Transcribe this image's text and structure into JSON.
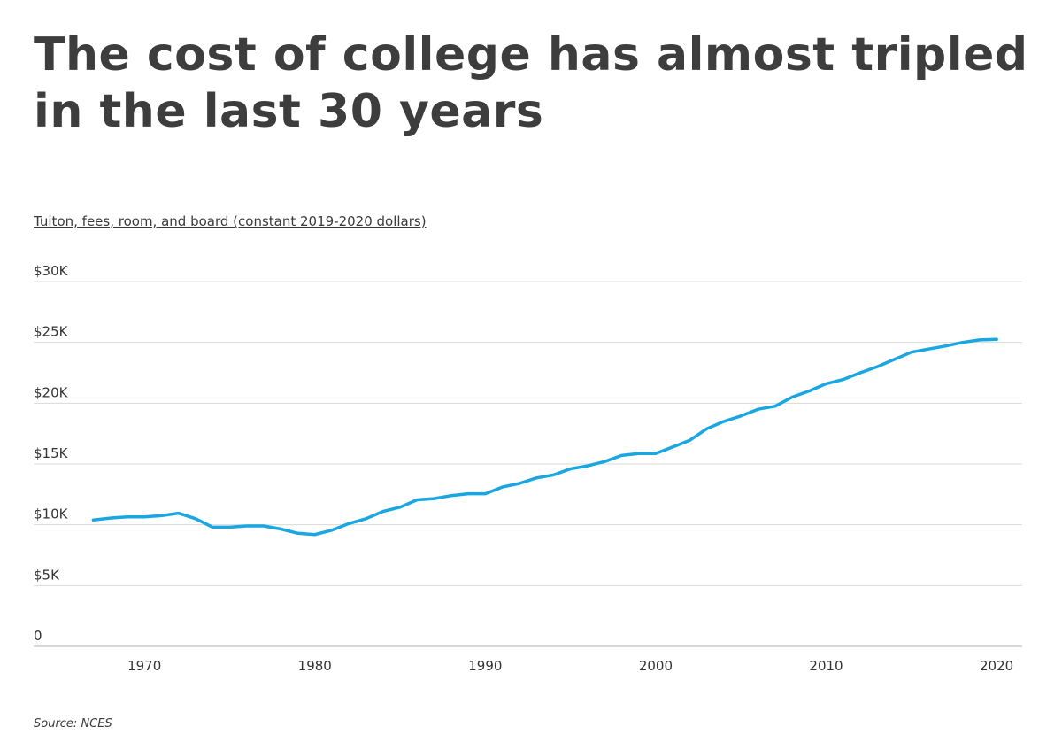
{
  "title": "The cost of college has almost tripled in the last 30 years",
  "source": "Source:  NCES",
  "colors": {
    "line": "#1aa7e1",
    "grid": "#d9d9d9",
    "axis": "#cccccc"
  },
  "chart_data": {
    "type": "line",
    "title": "The cost of college has almost tripled in the last 30 years",
    "ylabel": "Tuiton, fees, room, and board (constant 2019-2020 dollars)",
    "xlabel": "",
    "ylim": [
      0,
      30000
    ],
    "xlim": [
      1963.5,
      2021.5
    ],
    "y_ticks": [
      {
        "value": 0,
        "label": "0"
      },
      {
        "value": 5000,
        "label": "$5K"
      },
      {
        "value": 10000,
        "label": "$10K"
      },
      {
        "value": 15000,
        "label": "$15K"
      },
      {
        "value": 20000,
        "label": "$20K"
      },
      {
        "value": 25000,
        "label": "$25K"
      },
      {
        "value": 30000,
        "label": "$30K"
      }
    ],
    "x_ticks": [
      {
        "value": 1970,
        "label": "1970"
      },
      {
        "value": 1980,
        "label": "1980"
      },
      {
        "value": 1990,
        "label": "1990"
      },
      {
        "value": 2000,
        "label": "2000"
      },
      {
        "value": 2010,
        "label": "2010"
      },
      {
        "value": 2020,
        "label": "2020"
      }
    ],
    "grid": true,
    "series": [
      {
        "x": [
          1967,
          1968,
          1969,
          1970,
          1971,
          1972,
          1973,
          1974,
          1975,
          1976,
          1977,
          1978,
          1979,
          1980,
          1981,
          1982,
          1983,
          1984,
          1985,
          1986,
          1987,
          1988,
          1989,
          1990,
          1991,
          1992,
          1993,
          1994,
          1995,
          1996,
          1997,
          1998,
          1999,
          2000,
          2001,
          2002,
          2003,
          2004,
          2005,
          2006,
          2007,
          2008,
          2009,
          2010,
          2011,
          2012,
          2013,
          2014,
          2015,
          2016,
          2017,
          2018,
          2019,
          2020
        ],
        "values": [
          10400,
          10550,
          10650,
          10650,
          10750,
          10950,
          10500,
          9800,
          9800,
          9900,
          9900,
          9650,
          9300,
          9200,
          9550,
          10100,
          10500,
          11100,
          11450,
          12050,
          12150,
          12400,
          12550,
          12550,
          13100,
          13400,
          13850,
          14100,
          14600,
          14850,
          15200,
          15700,
          15850,
          15850,
          16400,
          16950,
          17900,
          18500,
          18950,
          19500,
          19750,
          20500,
          21000,
          21600,
          21950,
          22500,
          23000,
          23600,
          24200,
          24450,
          24700,
          25000,
          25200,
          25250
        ]
      }
    ]
  }
}
